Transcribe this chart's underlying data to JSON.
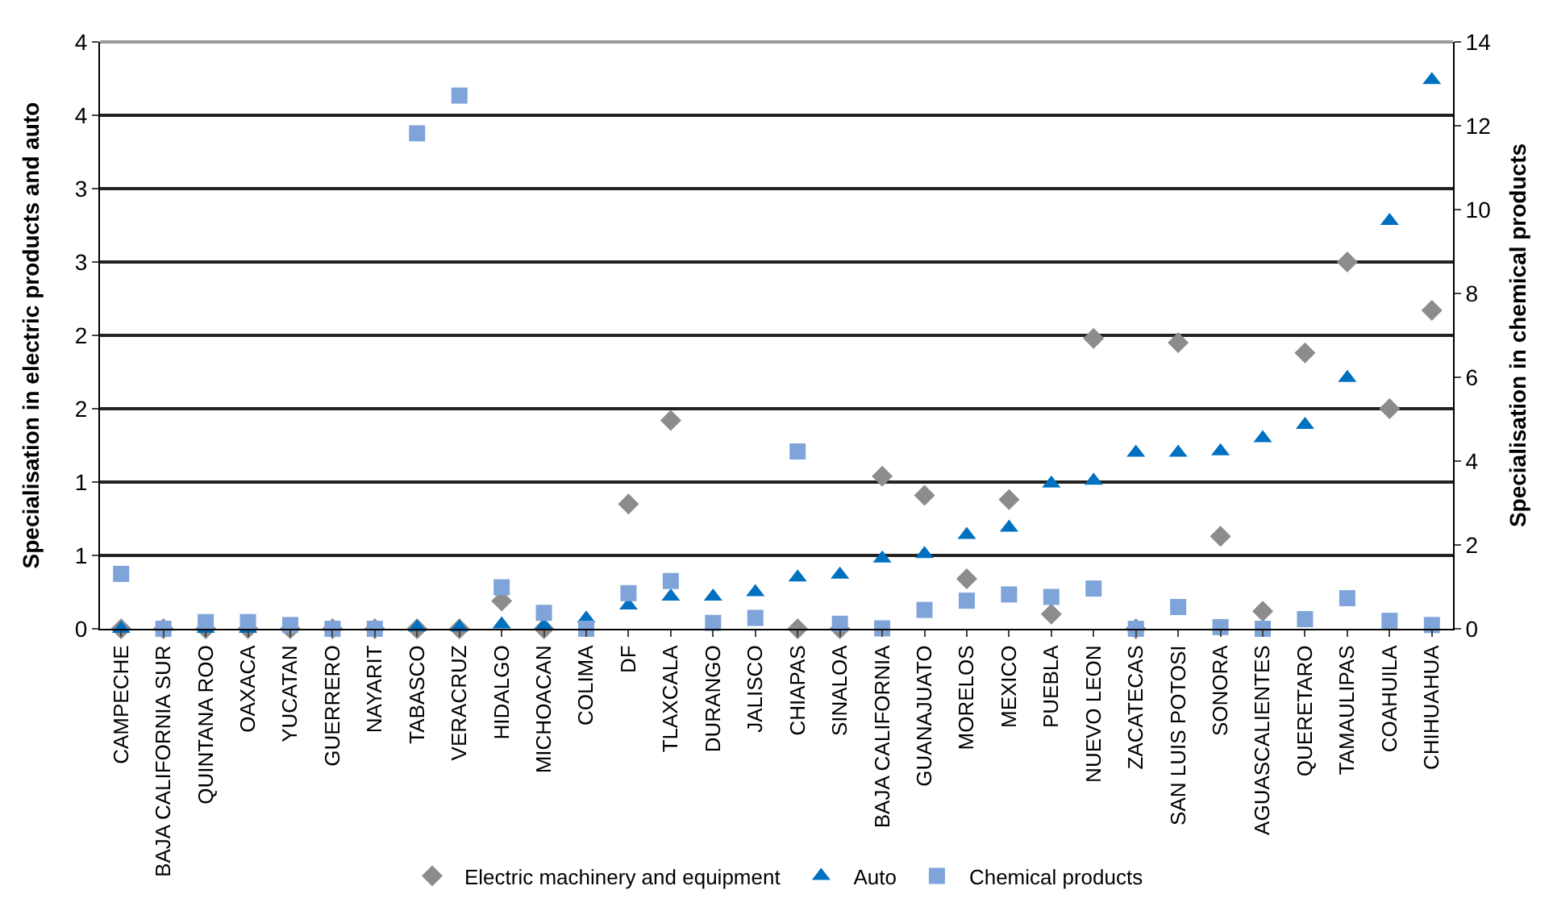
{
  "chart_data": {
    "type": "scatter",
    "ylabel": "Specialisation in electric products and auto",
    "y2label": "Specialisation in chemical products",
    "categories": [
      "CAMPECHE",
      "BAJA CALIFORNIA SUR",
      "QUINTANA ROO",
      "OAXACA",
      "YUCATAN",
      "GUERRERO",
      "NAYARIT",
      "TABASCO",
      "VERACRUZ",
      "HIDALGO",
      "MICHOACAN",
      "COLIMA",
      "DF",
      "TLAXCALA",
      "DURANGO",
      "JALISCO",
      "CHIAPAS",
      "SINALOA",
      "BAJA CALIFORNIA",
      "GUANAJUATO",
      "MORELOS",
      "MEXICO",
      "PUEBLA",
      "NUEVO LEON",
      "ZACATECAS",
      "SAN LUIS POTOSI",
      "SONORA",
      "AGUASCALIENTES",
      "QUERETARO",
      "TAMAULIPAS",
      "COAHUILA",
      "CHIHUAHUA"
    ],
    "series": [
      {
        "name": "Electric machinery and equipment",
        "color": "#8c8c8c",
        "marker": "diamond",
        "values": [
          0,
          0,
          0,
          0,
          0,
          0,
          0,
          0,
          0,
          0.19,
          0,
          null,
          0.85,
          1.42,
          null,
          null,
          0,
          0,
          1.04,
          0.91,
          0.34,
          0.88,
          0.1,
          1.98,
          0,
          1.95,
          0.63,
          0.12,
          1.88,
          2.5,
          1.5,
          2.17
        ]
      },
      {
        "name": "Auto",
        "color": "#0070c0",
        "marker": "triangle",
        "values": [
          0,
          null,
          0,
          0,
          null,
          null,
          null,
          0.01,
          0.01,
          0.03,
          0.02,
          0.07,
          0.16,
          0.22,
          0.22,
          0.25,
          0.35,
          0.37,
          0.48,
          0.51,
          0.64,
          0.69,
          0.99,
          1.01,
          1.2,
          1.2,
          1.21,
          1.3,
          1.39,
          1.71,
          2.78,
          3.74
        ]
      },
      {
        "name": "Chemical products",
        "color": "#7fa4d9",
        "marker": "square",
        "axis": "y2",
        "values": [
          1.31,
          0,
          0.16,
          0.16,
          0.09,
          0,
          0,
          11.82,
          12.72,
          0.99,
          0.38,
          0,
          0.85,
          1.14,
          0.14,
          0.26,
          4.23,
          0.12,
          0.01,
          0.45,
          0.67,
          0.82,
          0.76,
          0.96,
          0,
          0.52,
          0.04,
          0,
          0.23,
          0.73,
          0.19,
          0.09
        ]
      }
    ],
    "ylim": [
      0,
      4
    ],
    "yticks": [
      0,
      {
        "value": 0.5,
        "label": "1"
      },
      1,
      {
        "value": 1.5,
        "label": "2"
      },
      2,
      {
        "value": 2.5,
        "label": "3"
      },
      3,
      {
        "value": 3.5,
        "label": "4"
      },
      4
    ],
    "y2lim": [
      0,
      14
    ],
    "y2ticks": [
      0,
      2,
      4,
      6,
      8,
      10,
      12,
      14
    ],
    "grid": "y",
    "legend": "bottom"
  }
}
